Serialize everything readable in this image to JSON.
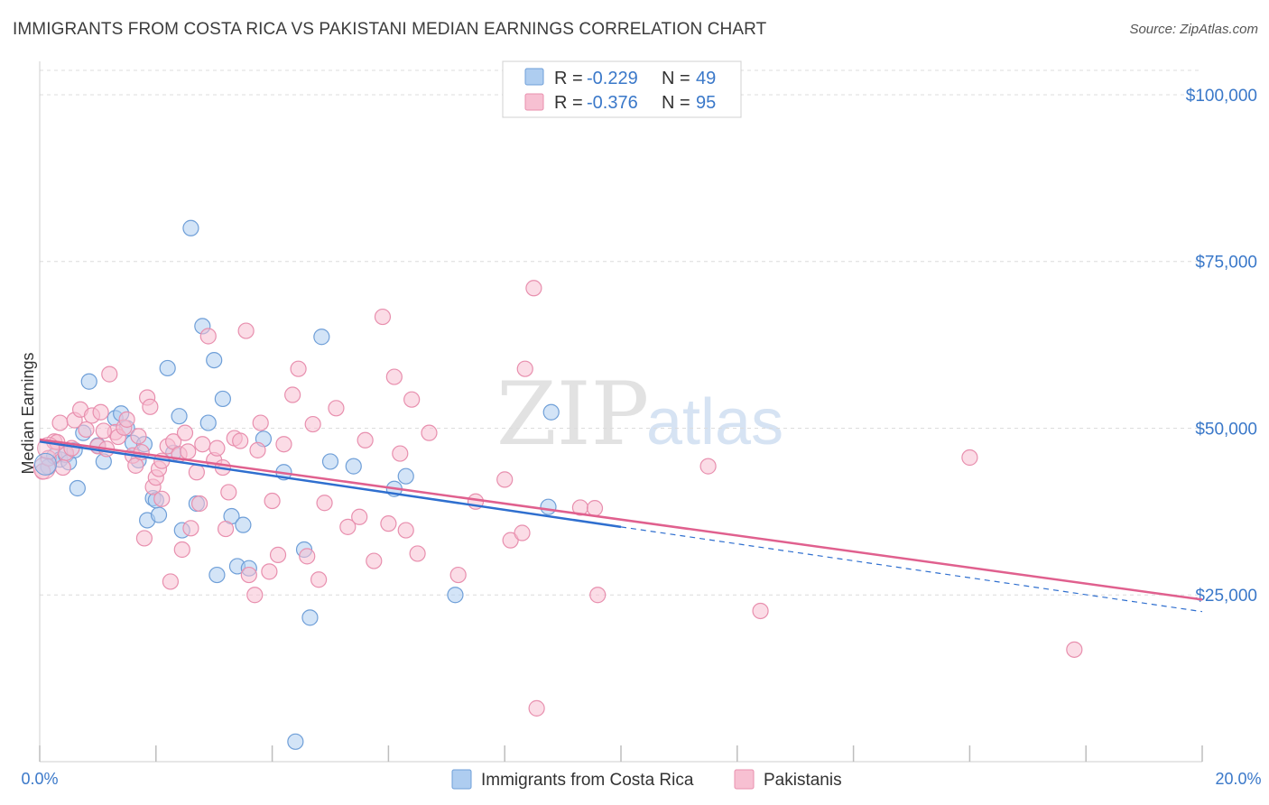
{
  "header": {
    "title": "IMMIGRANTS FROM COSTA RICA VS PAKISTANI MEDIAN EARNINGS CORRELATION CHART",
    "source": "Source: ZipAtlas.com"
  },
  "legend": {
    "rows": [
      {
        "r_label": "R = ",
        "r_value": "-0.229",
        "n_label": "N = ",
        "n_value": "49"
      },
      {
        "r_label": "R = ",
        "r_value": "-0.376",
        "n_label": "N = ",
        "n_value": "95"
      }
    ]
  },
  "watermark": {
    "zip": "ZIP",
    "atlas": "atlas"
  },
  "colors": {
    "blue_fill": "#aecdf0",
    "blue_stroke": "#6f9fd8",
    "blue_line": "#2f6fcf",
    "pink_fill": "#f7c0d2",
    "pink_stroke": "#e88fae",
    "pink_line": "#e0608e",
    "axis_text": "#3a78c9",
    "grid": "#dcdcdc"
  },
  "chart_data": {
    "type": "scatter",
    "title": "IMMIGRANTS FROM COSTA RICA VS PAKISTANI MEDIAN EARNINGS CORRELATION CHART",
    "xlabel": "",
    "ylabel": "Median Earnings",
    "xlim": [
      0,
      20
    ],
    "ylim": [
      0,
      105000
    ],
    "x_tick_labels": [
      "0.0%",
      "20.0%"
    ],
    "y_ticks": [
      25000,
      50000,
      75000,
      100000
    ],
    "y_tick_labels": [
      "$25,000",
      "$50,000",
      "$75,000",
      "$100,000"
    ],
    "grid": true,
    "legend_position": "top-center",
    "series": [
      {
        "name": "Immigrants from Costa Rica",
        "color": "#6f9fd8",
        "r": -0.229,
        "n": 49,
        "trend": {
          "x0": 0,
          "y0": 48000,
          "x1": 10,
          "y1": 35200,
          "dashed_to_x": 20,
          "dashed_to_y": 22500
        },
        "points": [
          [
            0.15,
            44200
          ],
          [
            0.25,
            45800
          ],
          [
            0.35,
            45300
          ],
          [
            0.45,
            46000
          ],
          [
            0.5,
            44900
          ],
          [
            0.65,
            41000
          ],
          [
            0.75,
            49300
          ],
          [
            0.85,
            57000
          ],
          [
            1.0,
            47400
          ],
          [
            1.1,
            45000
          ],
          [
            1.3,
            51500
          ],
          [
            1.4,
            52200
          ],
          [
            1.5,
            50000
          ],
          [
            1.6,
            47800
          ],
          [
            1.7,
            45200
          ],
          [
            1.8,
            47600
          ],
          [
            1.85,
            36200
          ],
          [
            1.95,
            39500
          ],
          [
            2.05,
            37000
          ],
          [
            2.2,
            59000
          ],
          [
            2.3,
            46300
          ],
          [
            2.4,
            51800
          ],
          [
            2.45,
            34700
          ],
          [
            2.6,
            80000
          ],
          [
            2.7,
            38700
          ],
          [
            2.8,
            65300
          ],
          [
            2.9,
            50800
          ],
          [
            3.0,
            60200
          ],
          [
            3.05,
            28000
          ],
          [
            3.15,
            54400
          ],
          [
            3.3,
            36800
          ],
          [
            3.4,
            29300
          ],
          [
            3.5,
            35500
          ],
          [
            3.6,
            29000
          ],
          [
            3.85,
            48400
          ],
          [
            4.2,
            43400
          ],
          [
            4.4,
            3000
          ],
          [
            4.55,
            31800
          ],
          [
            4.65,
            21600
          ],
          [
            4.85,
            63700
          ],
          [
            5.0,
            45000
          ],
          [
            5.4,
            44300
          ],
          [
            6.1,
            40900
          ],
          [
            6.3,
            42800
          ],
          [
            7.15,
            25000
          ],
          [
            8.75,
            38200
          ],
          [
            8.8,
            52400
          ],
          [
            0.6,
            46700
          ],
          [
            2.0,
            39200
          ]
        ]
      },
      {
        "name": "Pakistanis",
        "color": "#e88fae",
        "r": -0.376,
        "n": 95,
        "trend": {
          "x0": 0,
          "y0": 48300,
          "x1": 20,
          "y1": 24300
        },
        "points": [
          [
            0.05,
            43500
          ],
          [
            0.15,
            45500
          ],
          [
            0.25,
            48000
          ],
          [
            0.35,
            50800
          ],
          [
            0.45,
            46300
          ],
          [
            0.55,
            47000
          ],
          [
            0.6,
            51200
          ],
          [
            0.7,
            52800
          ],
          [
            0.8,
            49800
          ],
          [
            0.9,
            51900
          ],
          [
            1.0,
            47300
          ],
          [
            1.05,
            52400
          ],
          [
            1.15,
            46900
          ],
          [
            1.2,
            58100
          ],
          [
            1.3,
            49400
          ],
          [
            1.35,
            48700
          ],
          [
            1.45,
            50100
          ],
          [
            1.5,
            51300
          ],
          [
            1.6,
            45900
          ],
          [
            1.65,
            44400
          ],
          [
            1.7,
            48800
          ],
          [
            1.75,
            46400
          ],
          [
            1.8,
            33500
          ],
          [
            1.85,
            54600
          ],
          [
            1.9,
            53200
          ],
          [
            1.95,
            41200
          ],
          [
            2.0,
            42600
          ],
          [
            2.05,
            43900
          ],
          [
            2.1,
            39400
          ],
          [
            2.2,
            47300
          ],
          [
            2.25,
            27000
          ],
          [
            2.3,
            48000
          ],
          [
            2.4,
            46100
          ],
          [
            2.45,
            31800
          ],
          [
            2.5,
            49300
          ],
          [
            2.55,
            46500
          ],
          [
            2.6,
            35000
          ],
          [
            2.7,
            43400
          ],
          [
            2.75,
            38700
          ],
          [
            2.8,
            47600
          ],
          [
            2.9,
            63800
          ],
          [
            3.0,
            45200
          ],
          [
            3.05,
            47000
          ],
          [
            3.15,
            44100
          ],
          [
            3.2,
            34900
          ],
          [
            3.35,
            48500
          ],
          [
            3.45,
            48100
          ],
          [
            3.55,
            64600
          ],
          [
            3.6,
            28000
          ],
          [
            3.7,
            25000
          ],
          [
            3.75,
            46700
          ],
          [
            3.8,
            50800
          ],
          [
            3.95,
            28500
          ],
          [
            4.1,
            31000
          ],
          [
            4.2,
            47600
          ],
          [
            4.35,
            55000
          ],
          [
            4.45,
            58900
          ],
          [
            4.6,
            30800
          ],
          [
            4.7,
            50600
          ],
          [
            4.8,
            27300
          ],
          [
            4.9,
            38800
          ],
          [
            5.1,
            53000
          ],
          [
            5.3,
            35200
          ],
          [
            5.5,
            36700
          ],
          [
            5.6,
            48200
          ],
          [
            5.75,
            30100
          ],
          [
            5.9,
            66700
          ],
          [
            6.0,
            35700
          ],
          [
            6.1,
            57700
          ],
          [
            6.2,
            46200
          ],
          [
            6.3,
            34700
          ],
          [
            6.4,
            54300
          ],
          [
            6.5,
            31200
          ],
          [
            6.7,
            49300
          ],
          [
            7.2,
            28000
          ],
          [
            7.5,
            39000
          ],
          [
            8.0,
            42300
          ],
          [
            8.1,
            33200
          ],
          [
            8.3,
            34300
          ],
          [
            8.35,
            58900
          ],
          [
            8.5,
            71000
          ],
          [
            8.55,
            8000
          ],
          [
            9.3,
            38100
          ],
          [
            9.55,
            38000
          ],
          [
            9.6,
            25000
          ],
          [
            11.5,
            44300
          ],
          [
            12.4,
            22600
          ],
          [
            16.0,
            45600
          ],
          [
            17.8,
            16800
          ],
          [
            0.3,
            47900
          ],
          [
            0.4,
            44100
          ],
          [
            1.1,
            49600
          ],
          [
            2.1,
            45100
          ],
          [
            3.25,
            40400
          ],
          [
            4.0,
            39100
          ]
        ]
      }
    ]
  }
}
